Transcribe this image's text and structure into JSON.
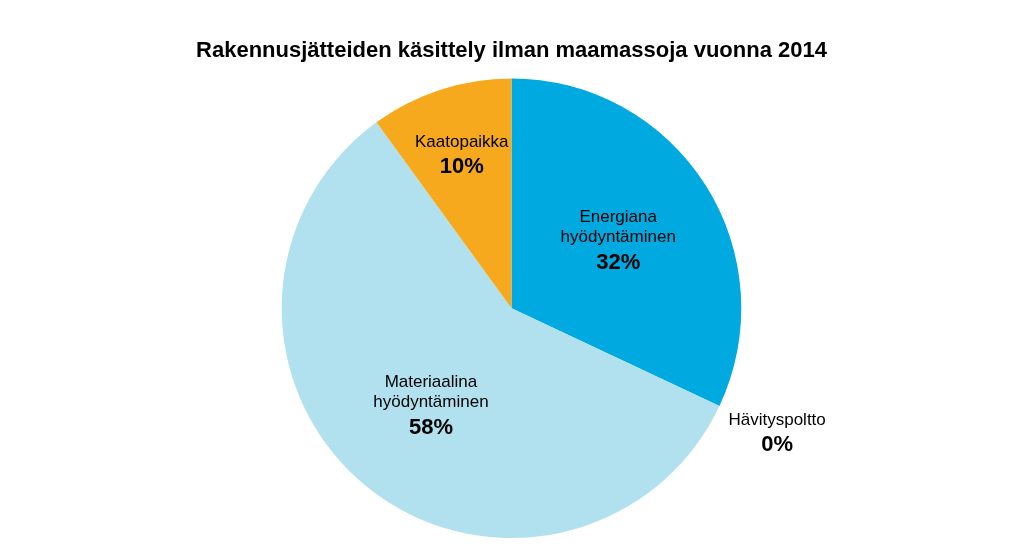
{
  "chart_data": {
    "type": "pie",
    "title": "Rakennusjätteiden käsittely ilman maamassoja vuonna 2014",
    "categories": [
      "Energiana hyödyntäminen",
      "Hävityspoltto",
      "Materiaalina hyödyntäminen",
      "Kaatopaikka"
    ],
    "values": [
      32,
      0,
      58,
      10
    ],
    "value_labels": [
      "32%",
      "0%",
      "58%",
      "10%"
    ],
    "colors": [
      "#00a9e0",
      "#000000",
      "#b1e1ee",
      "#f6a91d"
    ],
    "data_labels": true
  }
}
